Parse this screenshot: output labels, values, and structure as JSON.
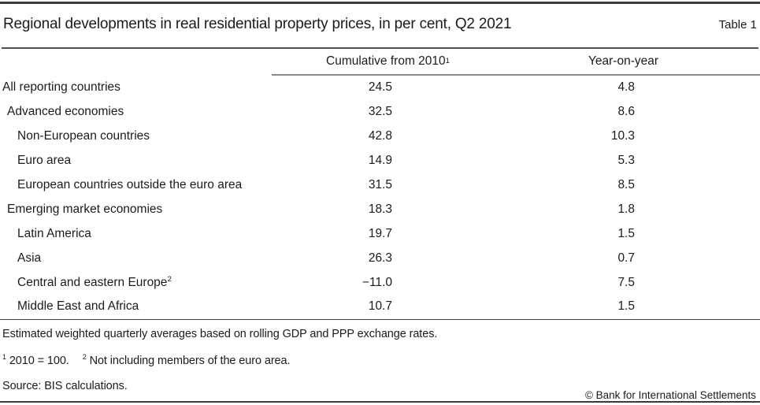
{
  "header": {
    "title": "Regional developments in real residential property prices, in per cent, Q2 2021",
    "table_label": "Table 1"
  },
  "table": {
    "columns": [
      {
        "label": "Cumulative from 2010",
        "sup": "1"
      },
      {
        "label": "Year-on-year",
        "sup": ""
      }
    ],
    "rows": [
      {
        "label": "All reporting countries",
        "sup": "",
        "indent": 0,
        "cumulative": "24.5",
        "yoy": "4.8"
      },
      {
        "label": "Advanced economies",
        "sup": "",
        "indent": 1,
        "cumulative": "32.5",
        "yoy": "8.6"
      },
      {
        "label": "Non-European countries",
        "sup": "",
        "indent": 2,
        "cumulative": "42.8",
        "yoy": "10.3"
      },
      {
        "label": "Euro area",
        "sup": "",
        "indent": 2,
        "cumulative": "14.9",
        "yoy": "5.3"
      },
      {
        "label": "European countries outside the euro area",
        "sup": "",
        "indent": 2,
        "cumulative": "31.5",
        "yoy": "8.5"
      },
      {
        "label": "Emerging market economies",
        "sup": "",
        "indent": 1,
        "cumulative": "18.3",
        "yoy": "1.8"
      },
      {
        "label": "Latin America",
        "sup": "",
        "indent": 2,
        "cumulative": "19.7",
        "yoy": "1.5"
      },
      {
        "label": "Asia",
        "sup": "",
        "indent": 2,
        "cumulative": "26.3",
        "yoy": "0.7"
      },
      {
        "label": "Central and eastern Europe",
        "sup": "2",
        "indent": 2,
        "cumulative": "−11.0",
        "yoy": "7.5"
      },
      {
        "label": "Middle East and Africa",
        "sup": "",
        "indent": 2,
        "cumulative": "10.7",
        "yoy": "1.5"
      }
    ]
  },
  "footnotes": {
    "note": "Estimated weighted quarterly averages based on rolling GDP and PPP exchange rates.",
    "fn1_sup": "1",
    "fn1_text": " 2010 = 100.",
    "fn2_sup": "2",
    "fn2_text": " Not including members of the euro area.",
    "source": "Source: BIS calculations.",
    "copyright": "© Bank for International Settlements"
  },
  "colors": {
    "text": "#1b1b1b",
    "rule_dark": "#3b3b3b",
    "rule_gray": "#8a8a8a",
    "rule_title": "#4f4f4f",
    "rule_table_bottom": "#414141",
    "background": "#ffffff"
  }
}
